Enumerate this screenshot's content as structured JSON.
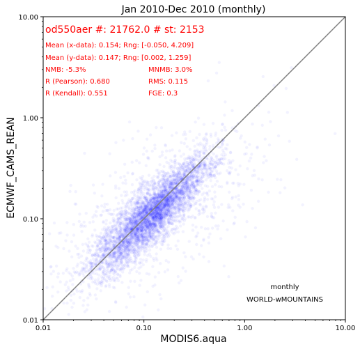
{
  "chart_data": {
    "type": "scatter",
    "title": "Jan 2010-Dec 2010 (monthly)",
    "xlabel": "MODIS6.aqua",
    "ylabel": "ECMWF_CAMS_REAN",
    "x_scale": "log",
    "y_scale": "log",
    "xlim": [
      0.01,
      10.0
    ],
    "ylim": [
      0.01,
      10.0
    ],
    "x_ticks": [
      {
        "value": 0.01,
        "label": "0.01"
      },
      {
        "value": 0.1,
        "label": "0.10"
      },
      {
        "value": 1.0,
        "label": "1.00"
      },
      {
        "value": 10.0,
        "label": "10.00"
      }
    ],
    "y_ticks": [
      {
        "value": 0.01,
        "label": "0.01"
      },
      {
        "value": 0.1,
        "label": "0.10"
      },
      {
        "value": 1.0,
        "label": "1.00"
      },
      {
        "value": 10.0,
        "label": "10.00"
      }
    ],
    "grid": false,
    "one_to_one_line": true,
    "point_color": "#0000ff",
    "line_color": "#808080",
    "stats_color": "#ff0000",
    "points_summary": {
      "count": 21762,
      "x_mean": 0.154,
      "y_mean": 0.147,
      "x_range": [
        -0.05,
        4.209
      ],
      "y_range": [
        0.002,
        1.259
      ]
    },
    "annotations": {
      "header": "od550aer #: 21762.0 # st: 2153",
      "mean_x": "Mean (x-data): 0.154; Rng: [-0.050, 4.209]",
      "mean_y": "Mean (y-data): 0.147; Rng: [0.002, 1.259]",
      "nmb": "NMB: -5.3%",
      "mnmb": "MNMB: 3.0%",
      "r_pearson": "R (Pearson): 0.680",
      "rms": "RMS: 0.115",
      "r_kendall": "R (Kendall): 0.551",
      "fge": "FGE: 0.3",
      "freq": "monthly",
      "region": "WORLD-wMOUNTAINS"
    }
  }
}
